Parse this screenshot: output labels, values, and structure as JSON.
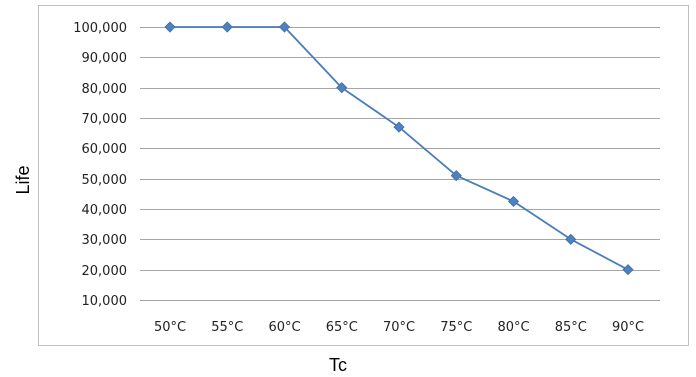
{
  "chart_data": {
    "type": "line",
    "categories": [
      "50°C",
      "55°C",
      "60°C",
      "65°C",
      "70°C",
      "75°C",
      "80°C",
      "85°C",
      "90°C"
    ],
    "series": [
      {
        "values": [
          100000,
          100000,
          100000,
          80000,
          67000,
          51000,
          42500,
          30000,
          20000
        ],
        "color": "#4A7EBB",
        "marker": "diamond"
      }
    ],
    "xlabel": "Tc",
    "ylabel": "Life",
    "ylim": [
      10000,
      100000
    ],
    "yticks": [
      "100,000",
      "90,000",
      "80,000",
      "70,000",
      "60,000",
      "50,000",
      "40,000",
      "30,000",
      "20,000",
      "10,000"
    ],
    "grid": true,
    "legend": "none",
    "colors": {
      "line": "#4A7EBB",
      "marker": "#4F81BD",
      "grid": "#A6A6A6",
      "border": "#BFBFBF"
    }
  }
}
